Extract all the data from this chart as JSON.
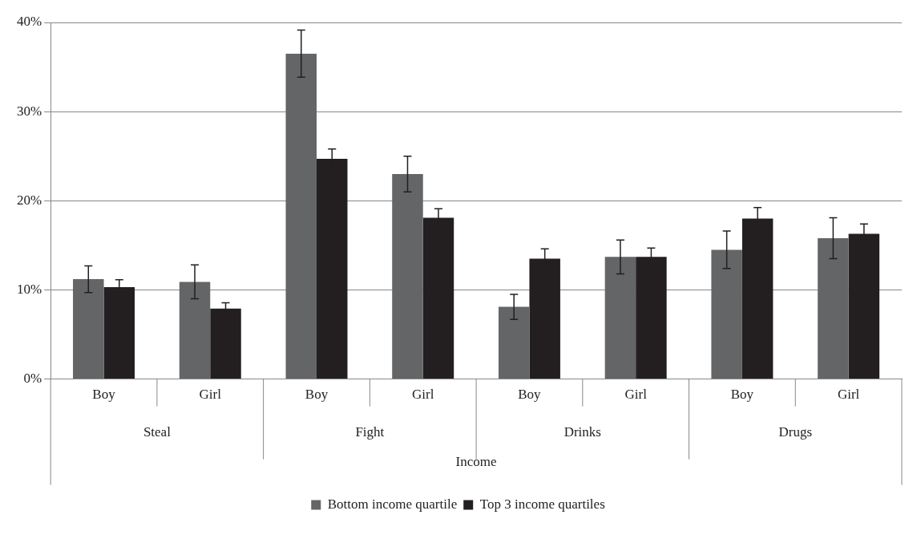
{
  "chart_data": {
    "type": "bar",
    "categories": [
      "Boy",
      "Girl",
      "Boy",
      "Girl",
      "Boy",
      "Girl",
      "Boy",
      "Girl"
    ],
    "annotations": [
      "Steal",
      "Fight",
      "Drinks",
      "Drugs",
      "Income"
    ],
    "series": [
      {
        "name": "Bottom income quartile",
        "color": "#646567",
        "values": [
          11.2,
          10.9,
          36.5,
          23.0,
          8.1,
          13.7,
          14.5,
          15.8
        ],
        "errors": [
          1.5,
          1.9,
          2.65,
          2.0,
          1.4,
          1.9,
          2.1,
          2.3
        ]
      },
      {
        "name": "Top 3 income quartiles",
        "color": "#231f20",
        "values": [
          10.3,
          7.9,
          24.7,
          18.1,
          13.5,
          13.7,
          18.0,
          16.3
        ],
        "errors": [
          0.85,
          0.65,
          1.1,
          1.0,
          1.1,
          1.0,
          1.25,
          1.1
        ]
      }
    ],
    "ylim": [
      0,
      40
    ],
    "yticks": [
      {
        "value": 0,
        "label": "0%"
      },
      {
        "value": 10,
        "label": "10%"
      },
      {
        "value": 20,
        "label": "20%"
      },
      {
        "value": 30,
        "label": "30%"
      },
      {
        "value": 40,
        "label": "40%"
      }
    ],
    "grid": "y",
    "legend": "bottom"
  }
}
